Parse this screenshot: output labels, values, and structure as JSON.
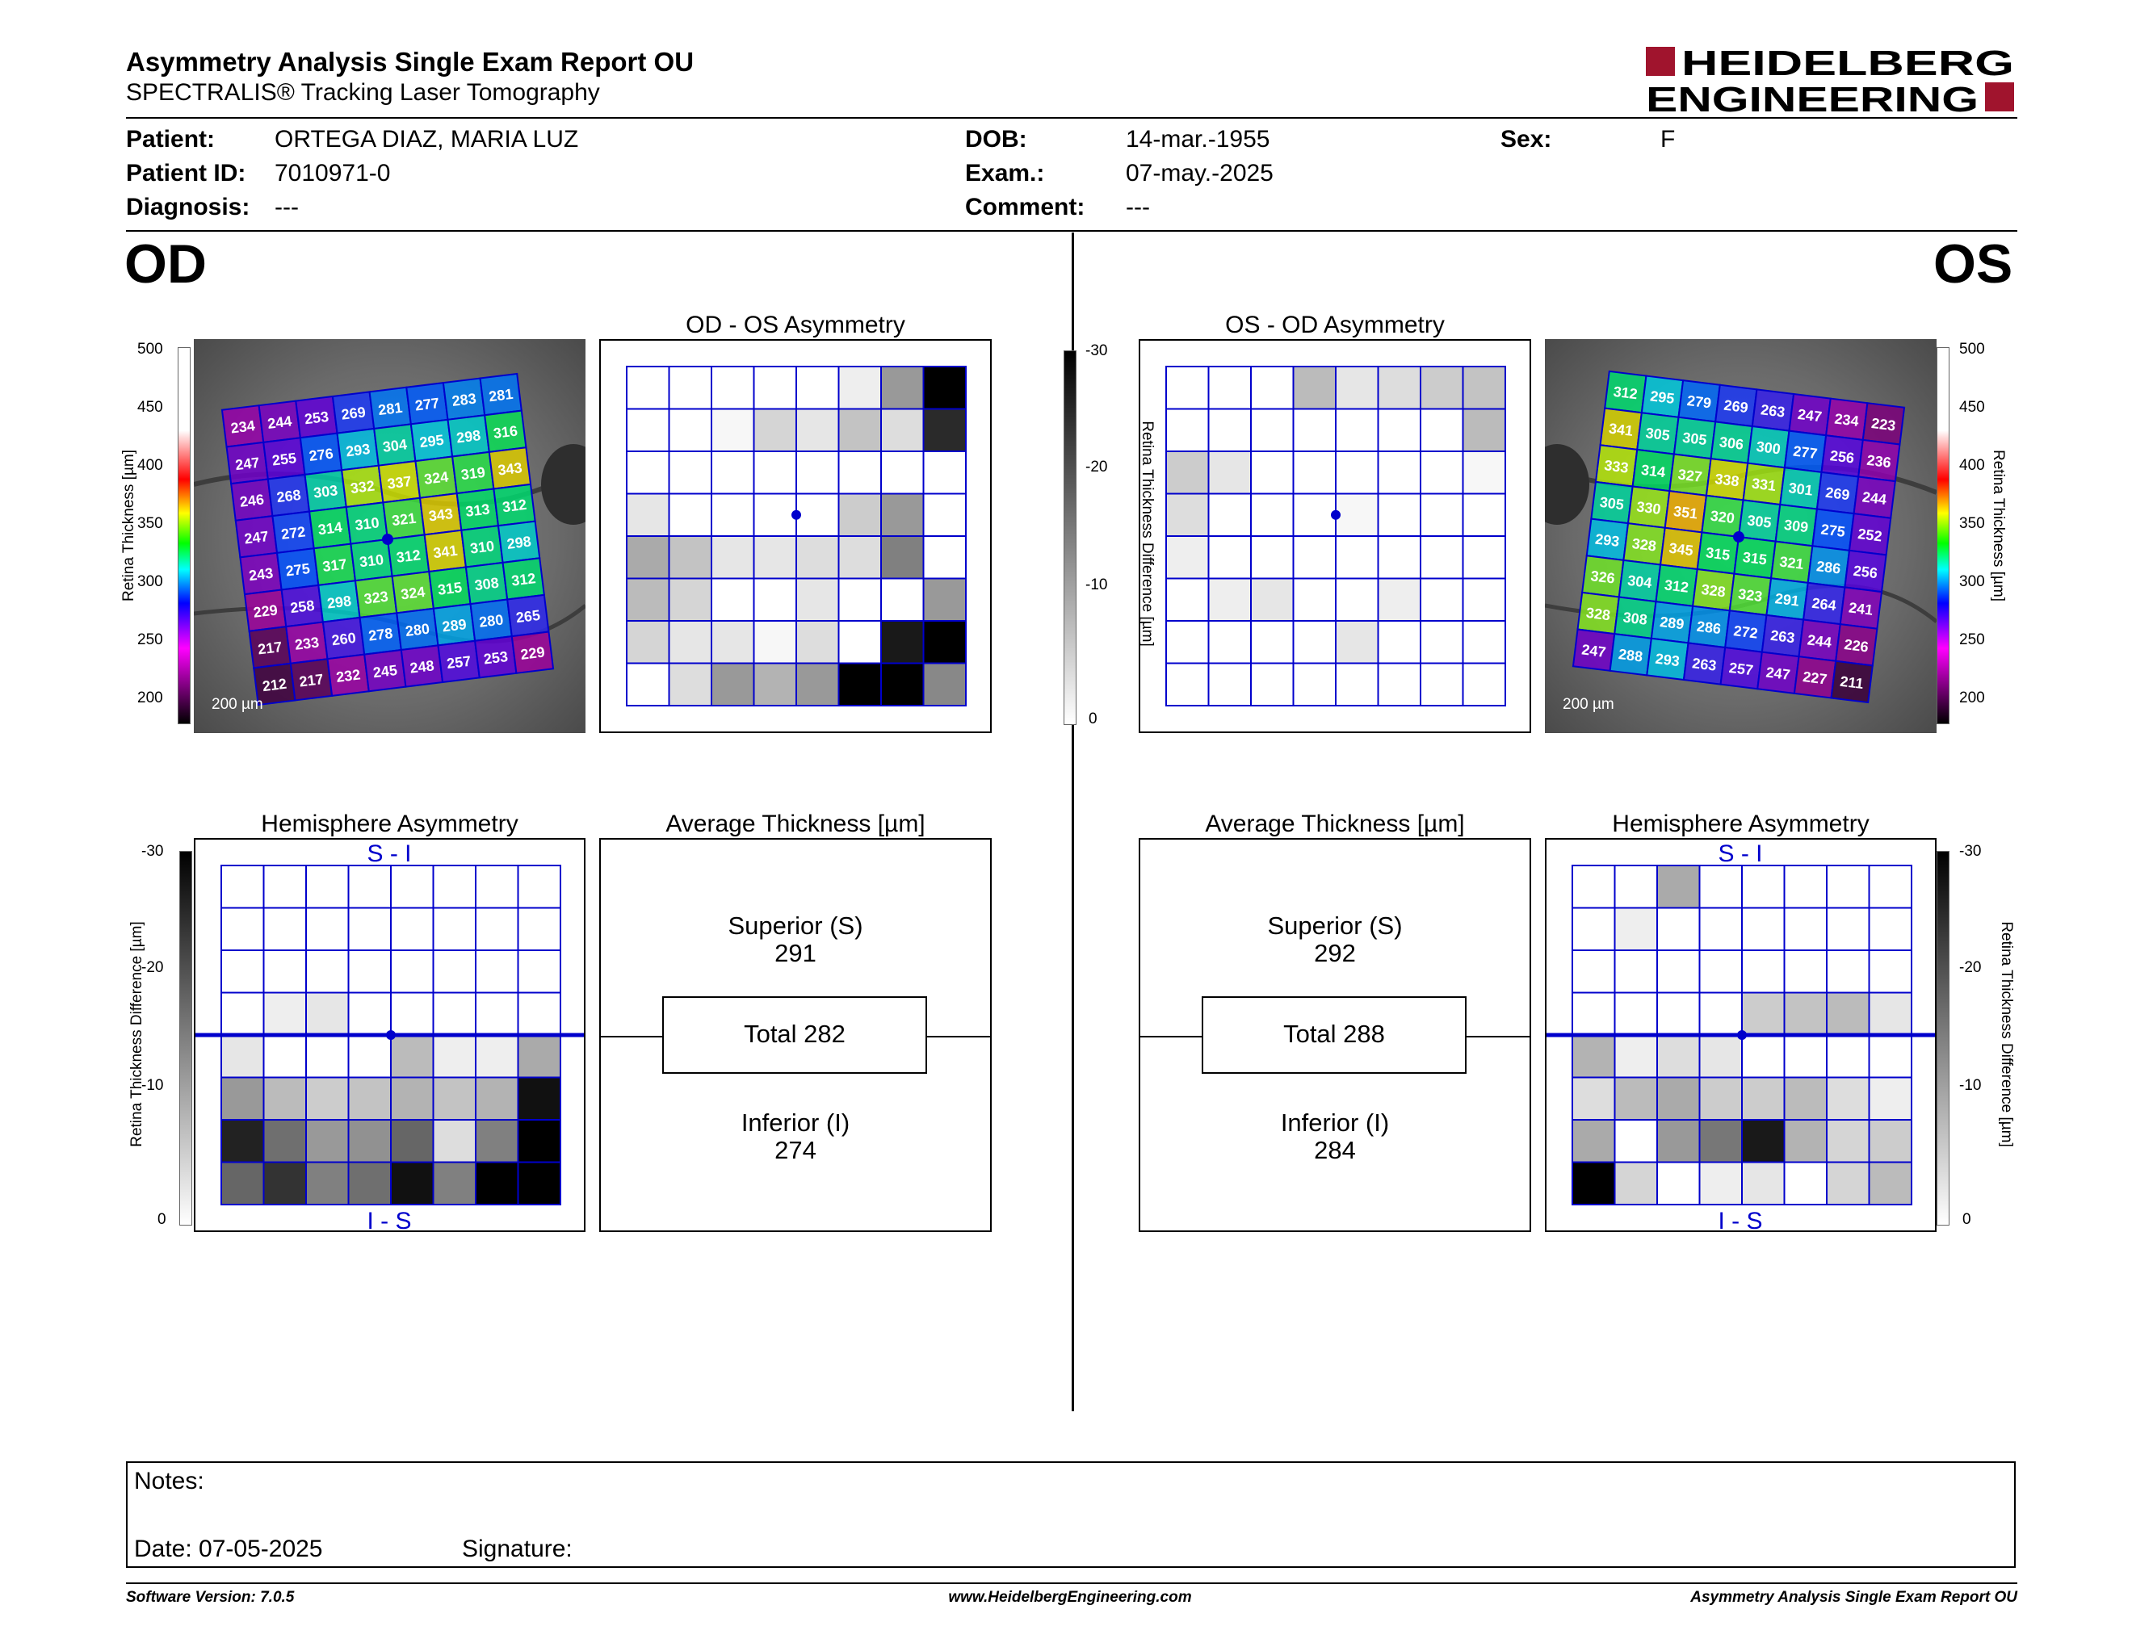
{
  "header": {
    "title": "Asymmetry Analysis Single Exam Report OU",
    "subtitle": "SPECTRALIS® Tracking Laser Tomography",
    "logo_line1": "HEIDELBERG",
    "logo_line2": "ENGINEERING"
  },
  "patient": {
    "patient_label": "Patient:",
    "patient_value": "ORTEGA DIAZ, MARIA LUZ",
    "id_label": "Patient ID:",
    "id_value": "7010971-0",
    "diagnosis_label": "Diagnosis:",
    "diagnosis_value": "---",
    "dob_label": "DOB:",
    "dob_value": "14-mar.-1955",
    "exam_label": "Exam.:",
    "exam_value": "07-may.-2025",
    "comment_label": "Comment:",
    "comment_value": "---",
    "sex_label": "Sex:",
    "sex_value": "F"
  },
  "od": {
    "eye_label": "OD",
    "asym_title": "OD - OS Asymmetry",
    "hemi_title": "Hemisphere Asymmetry",
    "avg_title": "Average Thickness [µm]",
    "superior_label": "Superior (S)",
    "superior_value": "291",
    "total_label": "Total 282",
    "inferior_label": "Inferior (I)",
    "inferior_value": "274",
    "scale_label": "200 µm",
    "hemi_top": "S - I",
    "hemi_bottom": "I - S",
    "thickness_grid": [
      [
        234,
        244,
        253,
        269,
        281,
        277,
        283,
        281
      ],
      [
        247,
        255,
        276,
        293,
        304,
        295,
        298,
        316
      ],
      [
        246,
        268,
        303,
        332,
        337,
        324,
        319,
        343
      ],
      [
        247,
        272,
        314,
        310,
        321,
        343,
        313,
        312
      ],
      [
        243,
        275,
        317,
        310,
        312,
        341,
        310,
        298
      ],
      [
        229,
        258,
        298,
        323,
        324,
        315,
        308,
        312
      ],
      [
        217,
        233,
        260,
        278,
        280,
        289,
        280,
        265
      ],
      [
        212,
        217,
        232,
        245,
        248,
        257,
        253,
        229
      ]
    ],
    "asym_grid": [
      [
        0,
        0,
        0,
        0,
        0,
        2,
        12,
        30
      ],
      [
        0,
        0,
        1,
        5,
        3,
        7,
        4,
        25
      ],
      [
        0,
        0,
        0,
        0,
        0,
        0,
        0,
        0
      ],
      [
        3,
        0,
        0,
        0,
        0,
        6,
        12,
        0
      ],
      [
        10,
        7,
        3,
        3,
        4,
        4,
        15,
        0
      ],
      [
        8,
        5,
        0,
        0,
        3,
        0,
        0,
        12
      ],
      [
        5,
        3,
        3,
        1,
        4,
        0,
        27,
        30
      ],
      [
        0,
        4,
        12,
        9,
        12,
        30,
        30,
        14
      ]
    ],
    "hemi_grid": [
      [
        0,
        0,
        0,
        0,
        0,
        0,
        0,
        0
      ],
      [
        0,
        0,
        0,
        0,
        0,
        0,
        0,
        0
      ],
      [
        0,
        0,
        0,
        0,
        0,
        0,
        0,
        0
      ],
      [
        0,
        2,
        3,
        0,
        0,
        0,
        0,
        0
      ],
      [
        3,
        0,
        0,
        0,
        8,
        2,
        2,
        10
      ],
      [
        12,
        8,
        6,
        7,
        9,
        7,
        9,
        28
      ],
      [
        26,
        17,
        12,
        13,
        18,
        4,
        15,
        30
      ],
      [
        18,
        24,
        15,
        17,
        28,
        15,
        30,
        30
      ]
    ]
  },
  "os": {
    "eye_label": "OS",
    "asym_title": "OS - OD Asymmetry",
    "hemi_title": "Hemisphere Asymmetry",
    "avg_title": "Average Thickness [µm]",
    "superior_label": "Superior (S)",
    "superior_value": "292",
    "total_label": "Total 288",
    "inferior_label": "Inferior (I)",
    "inferior_value": "284",
    "scale_label": "200 µm",
    "hemi_top": "S - I",
    "hemi_bottom": "I - S",
    "thickness_grid": [
      [
        312,
        295,
        279,
        269,
        263,
        247,
        234,
        223
      ],
      [
        341,
        305,
        305,
        306,
        300,
        277,
        256,
        236
      ],
      [
        333,
        314,
        327,
        338,
        331,
        301,
        269,
        244
      ],
      [
        305,
        330,
        351,
        320,
        305,
        309,
        275,
        252
      ],
      [
        293,
        328,
        345,
        315,
        315,
        321,
        286,
        256
      ],
      [
        326,
        304,
        312,
        328,
        323,
        291,
        264,
        241
      ],
      [
        328,
        308,
        289,
        286,
        272,
        263,
        244,
        226
      ],
      [
        247,
        288,
        293,
        263,
        257,
        247,
        227,
        211
      ]
    ],
    "asym_grid": [
      [
        0,
        0,
        0,
        8,
        3,
        4,
        6,
        7
      ],
      [
        0,
        0,
        0,
        0,
        0,
        0,
        0,
        8
      ],
      [
        6,
        3,
        0,
        0,
        0,
        0,
        0,
        1
      ],
      [
        4,
        0,
        0,
        0,
        1,
        0,
        0,
        0
      ],
      [
        2,
        0,
        0,
        0,
        0,
        0,
        0,
        0
      ],
      [
        0,
        2,
        3,
        0,
        0,
        2,
        0,
        0
      ],
      [
        0,
        0,
        0,
        0,
        3,
        0,
        0,
        0
      ],
      [
        0,
        0,
        0,
        0,
        0,
        0,
        0,
        0
      ]
    ],
    "hemi_grid": [
      [
        0,
        0,
        10,
        0,
        0,
        0,
        0,
        0
      ],
      [
        0,
        2,
        0,
        0,
        0,
        0,
        0,
        0
      ],
      [
        0,
        0,
        0,
        0,
        0,
        0,
        0,
        0
      ],
      [
        0,
        0,
        0,
        0,
        6,
        7,
        8,
        3
      ],
      [
        9,
        2,
        4,
        3,
        0,
        0,
        0,
        0
      ],
      [
        4,
        8,
        10,
        6,
        6,
        8,
        4,
        2
      ],
      [
        10,
        0,
        12,
        16,
        27,
        9,
        5,
        6
      ],
      [
        30,
        5,
        0,
        2,
        3,
        0,
        5,
        8
      ]
    ]
  },
  "colorbar": {
    "thickness_ticks": [
      "500",
      "450",
      "400",
      "350",
      "300",
      "250",
      "200"
    ],
    "thickness_label": "Retina Thickness [µm]",
    "diff_ticks": [
      "-30",
      "-20",
      "-10",
      "0"
    ],
    "diff_label": "Retina Thickness Difference [µm]"
  },
  "notes": {
    "notes_label": "Notes:",
    "date_label": "Date: 07-05-2025",
    "signature_label": "Signature:"
  },
  "footer": {
    "software": "Software Version: 7.0.5",
    "website": "www.HeidelbergEngineering.com",
    "report": "Asymmetry Analysis Single Exam Report OU"
  },
  "colors": {
    "grid_blue": "#0000cc",
    "brand_red": "#a0142d"
  }
}
